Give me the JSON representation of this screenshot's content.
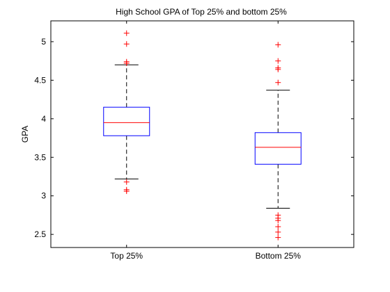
{
  "chart_data": {
    "type": "boxplot",
    "title": "High School GPA of Top 25% and bottom 25%",
    "xlabel": "",
    "ylabel": "GPA",
    "ylim": [
      2.33,
      5.27
    ],
    "yticks": [
      2.5,
      3,
      3.5,
      4,
      4.5,
      5
    ],
    "ytick_labels": [
      "2.5",
      "3",
      "3.5",
      "4",
      "4.5",
      "5"
    ],
    "categories": [
      "Top 25%",
      "Bottom 25%"
    ],
    "boxes": [
      {
        "category": "Top 25%",
        "whisker_low": 3.22,
        "q1": 3.78,
        "median": 3.95,
        "q3": 4.15,
        "whisker_high": 4.7,
        "outliers": [
          5.11,
          4.97,
          4.74,
          4.72,
          3.18,
          3.08,
          3.06
        ]
      },
      {
        "category": "Bottom 25%",
        "whisker_low": 2.84,
        "q1": 3.41,
        "median": 3.63,
        "q3": 3.82,
        "whisker_high": 4.37,
        "outliers": [
          4.96,
          4.75,
          4.66,
          4.64,
          4.47,
          2.75,
          2.71,
          2.68,
          2.6,
          2.53,
          2.46
        ]
      }
    ],
    "colors": {
      "box": "#0000ff",
      "median": "#ff0000",
      "whisker": "#000000",
      "outlier": "#ff0000"
    },
    "grid": false
  }
}
